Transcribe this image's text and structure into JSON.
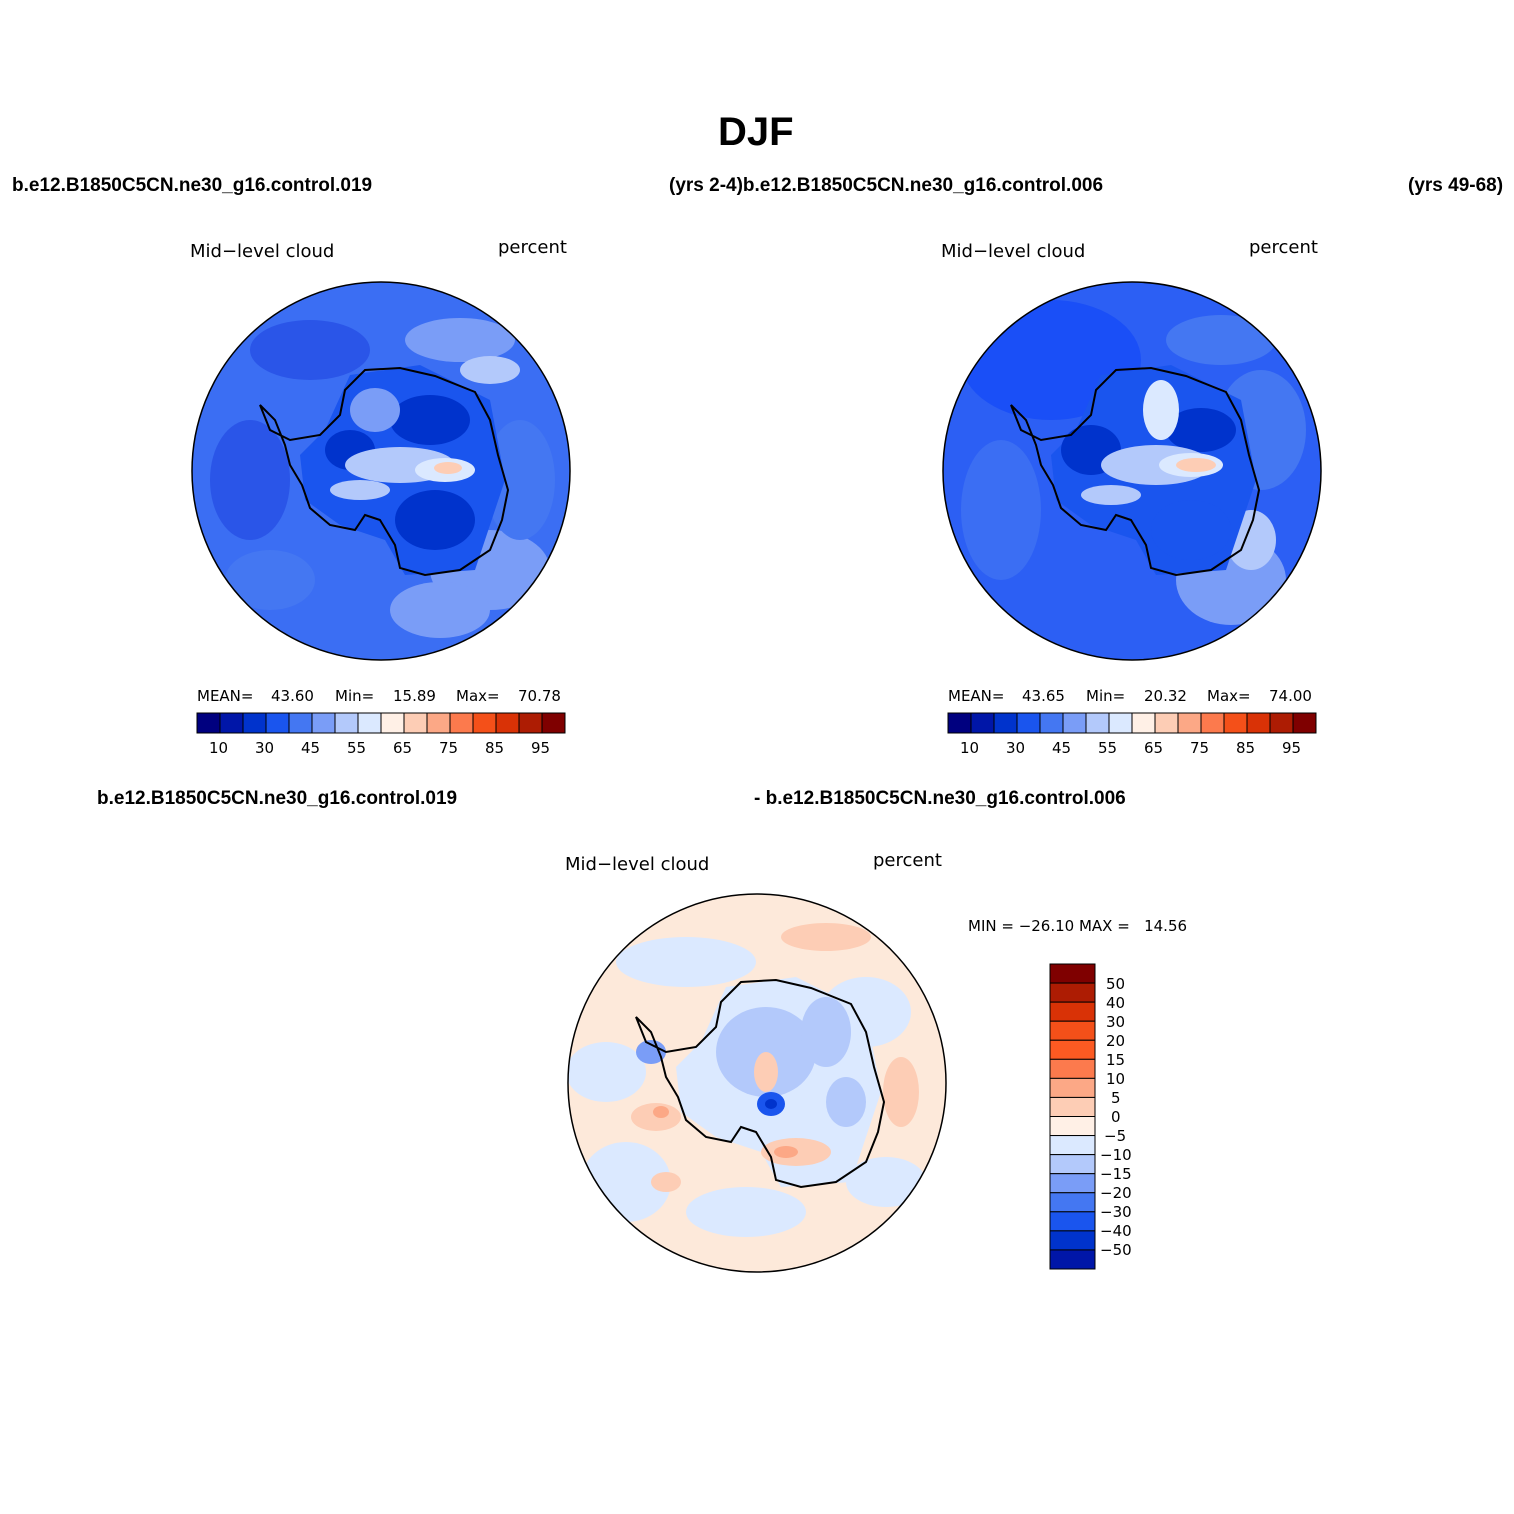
{
  "title": "DJF",
  "headers": {
    "left": "b.e12.B1850C5CN.ne30_g16.control.019",
    "middle": "(yrs 2-4)b.e12.B1850C5CN.ne30_g16.control.006",
    "right": "(yrs 49-68)",
    "diff_left": "b.e12.B1850C5CN.ne30_g16.control.019",
    "diff_right": "- b.e12.B1850C5CN.ne30_g16.control.006"
  },
  "panels": {
    "p1": {
      "variable": "Mid−level cloud",
      "units": "percent",
      "mean_label": "MEAN=",
      "mean": "43.60",
      "min_label": "Min=",
      "min": "15.89",
      "max_label": "Max=",
      "max": "70.78"
    },
    "p2": {
      "variable": "Mid−level cloud",
      "units": "percent",
      "mean_label": "MEAN=",
      "mean": "43.65",
      "min_label": "Min=",
      "min": "20.32",
      "max_label": "Max=",
      "max": "74.00"
    },
    "p3": {
      "variable": "Mid−level cloud",
      "units": "percent",
      "minmax": "MIN = −26.10 MAX =   14.56"
    }
  },
  "colorbar_main": {
    "colors": [
      "#00007f",
      "#0016a8",
      "#0033cc",
      "#1a55ee",
      "#4477f2",
      "#7a9df7",
      "#b3c9fb",
      "#dbe9ff",
      "#fff0e6",
      "#fdcdb5",
      "#fca886",
      "#fc7a4d",
      "#f45019",
      "#d93206",
      "#ad1c03",
      "#7f0000"
    ],
    "tick_labels": [
      "10",
      "30",
      "45",
      "55",
      "65",
      "75",
      "85",
      "95"
    ]
  },
  "colorbar_diff": {
    "colors": [
      "#7f0000",
      "#ad1c03",
      "#d93206",
      "#f45019",
      "#fc5a22",
      "#fc7a4d",
      "#fca886",
      "#fdcdb5",
      "#fff0e6",
      "#dbe9ff",
      "#b3c9fb",
      "#7a9df7",
      "#4477f2",
      "#1a55ee",
      "#0033cc",
      "#0016a8"
    ],
    "tick_labels": [
      "50",
      "40",
      "30",
      "20",
      "15",
      "10",
      "5",
      "0",
      "−5",
      "−10",
      "−15",
      "−20",
      "−30",
      "−40",
      "−50"
    ]
  },
  "map_colors": {
    "p1_base": "#3b6ef3",
    "p2_base": "#2c5ff4",
    "p3_base": "#fde9da",
    "coast": "#000000"
  }
}
